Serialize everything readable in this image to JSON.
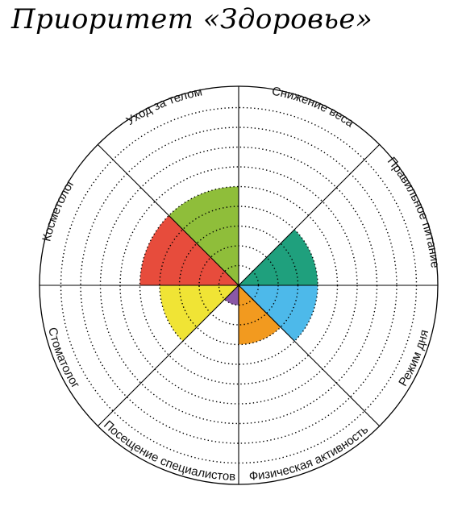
{
  "title": "Приоритет «Здоровье»",
  "wheel": {
    "rings": 10,
    "colors": {
      "weight_loss": "#1fa07d",
      "nutrition": "#1fa07d",
      "routine": "#4db9ea",
      "activity": "#f29a1f",
      "specialists": "#8a58a6",
      "dentist": "#f0e435",
      "cosmetologist": "#e74c3c",
      "body_care": "#8fbe3a"
    },
    "segments": [
      {
        "key": "weight_loss",
        "label": "Снижение веса",
        "level": 0
      },
      {
        "key": "nutrition",
        "label": "Правильное питание",
        "level": 4
      },
      {
        "key": "routine",
        "label": "Режим дня",
        "level": 4
      },
      {
        "key": "activity",
        "label": "Физическая активность",
        "level": 3
      },
      {
        "key": "specialists",
        "label": "Посещение специалистов",
        "level": 1
      },
      {
        "key": "dentist",
        "label": "Стоматолог",
        "level": 4
      },
      {
        "key": "cosmetologist",
        "label": "Косметолог",
        "level": 5
      },
      {
        "key": "body_care",
        "label": "Уход за телом",
        "level": 5
      }
    ]
  }
}
